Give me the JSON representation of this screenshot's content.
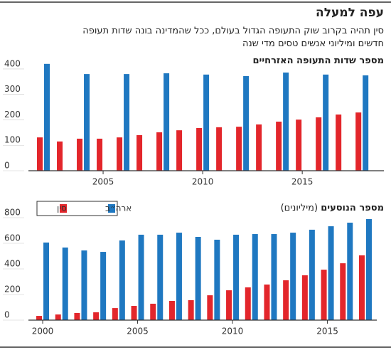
{
  "header": {
    "title": "עפה למעלה",
    "subtitle_lines": [
      "סין תהיה בקרוב שוק התעופה הגדול בעולם, ככל שהמדינה בונה שדות תעופה",
      "חדשים ומיליוני אנשים טסים מדי שנה"
    ]
  },
  "chart_data": [
    {
      "type": "bar",
      "title": "מספר שדות התעופה האזרחיים",
      "x": [
        2002,
        2003,
        2004,
        2005,
        2006,
        2007,
        2008,
        2009,
        2010,
        2011,
        2012,
        2013,
        2014,
        2015,
        2016,
        2017,
        2018
      ],
      "series": [
        {
          "color": "#e3262b",
          "values": [
            131,
            115,
            126,
            126,
            131,
            140,
            151,
            159,
            168,
            171,
            173,
            182,
            193,
            201,
            210,
            221,
            229
          ]
        },
        {
          "color": "#1f78c1",
          "values": [
            420,
            null,
            380,
            null,
            380,
            null,
            383,
            null,
            378,
            null,
            372,
            null,
            386,
            null,
            378,
            null,
            375
          ]
        }
      ],
      "xlim": [
        2001.25,
        2019.1
      ],
      "xticks": [
        2005,
        2010,
        2015
      ],
      "ylim": [
        0,
        420
      ],
      "yticks": [
        0,
        100,
        200,
        300,
        400
      ]
    },
    {
      "type": "bar",
      "title": "מספר הנוסעים",
      "unit": "(מיליונים)",
      "legend": "top-left",
      "x": [
        2000,
        2001,
        2002,
        2003,
        2004,
        2005,
        2006,
        2007,
        2008,
        2009,
        2010,
        2011,
        2012,
        2013,
        2014,
        2015,
        2016,
        2017
      ],
      "series": [
        {
          "name": "סין",
          "color": "#e3262b",
          "values": [
            33,
            44,
            56,
            61,
            94,
            111,
            128,
            150,
            156,
            194,
            233,
            256,
            278,
            311,
            350,
            394,
            444,
            506
          ]
        },
        {
          "name": "ארה״ב",
          "color": "#1f78c1",
          "values": [
            606,
            567,
            544,
            533,
            622,
            667,
            667,
            683,
            650,
            628,
            667,
            672,
            672,
            683,
            706,
            733,
            761,
            789
          ]
        }
      ],
      "xlim": [
        1999.25,
        2017.6
      ],
      "xticks": [
        2000,
        2005,
        2010,
        2015
      ],
      "ylim": [
        0,
        800
      ],
      "yticks": [
        0,
        200,
        400,
        600,
        800
      ]
    }
  ]
}
